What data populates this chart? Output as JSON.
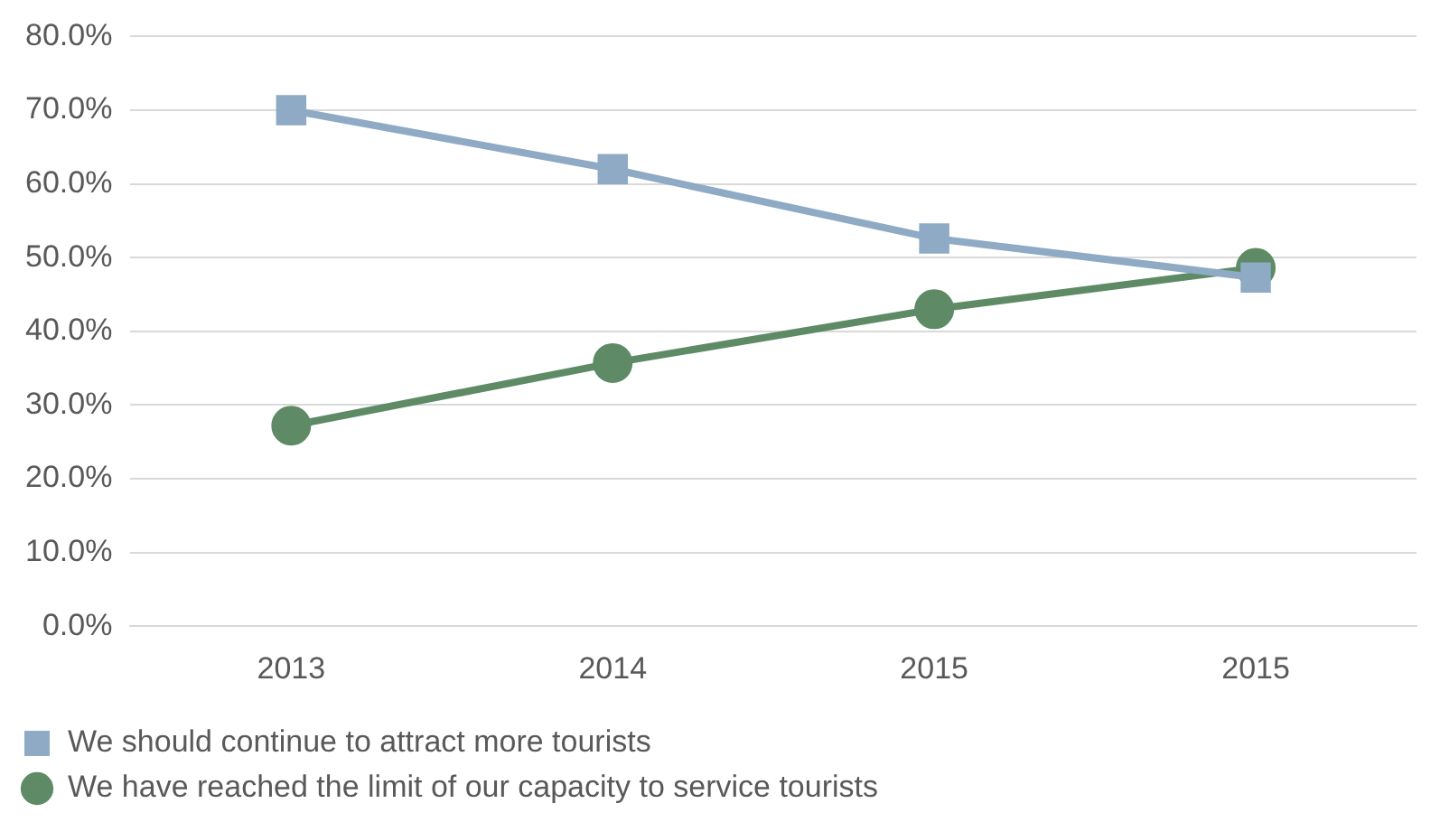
{
  "chart_data": {
    "type": "line",
    "categories": [
      "2013",
      "2014",
      "2015",
      "2015"
    ],
    "series": [
      {
        "name": "We should continue to attract more tourists",
        "color": "#8eaac4",
        "marker": "square",
        "values": [
          70,
          62,
          52.6,
          47.3
        ]
      },
      {
        "name": "We have reached the limit of our capacity to service tourists",
        "color": "#5e8a66",
        "marker": "circle",
        "values": [
          27.2,
          35.7,
          43,
          48.6
        ]
      }
    ],
    "ylim": [
      0,
      80
    ],
    "yticks": [
      {
        "value": 0,
        "label": "0.0%"
      },
      {
        "value": 10,
        "label": "10.0%"
      },
      {
        "value": 20,
        "label": "20.0%"
      },
      {
        "value": 30,
        "label": "30.0%"
      },
      {
        "value": 40,
        "label": "40.0%"
      },
      {
        "value": 50,
        "label": "50.0%"
      },
      {
        "value": 60,
        "label": "60.0%"
      },
      {
        "value": 70,
        "label": "70.0%"
      },
      {
        "value": 80,
        "label": "80.0%"
      }
    ],
    "grid": "y",
    "legend": "bottom left",
    "line_style": "solid"
  }
}
